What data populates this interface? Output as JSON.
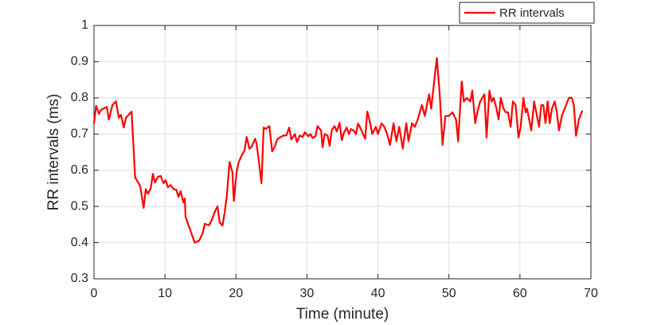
{
  "chart_data": {
    "type": "line",
    "xlabel": "Time (minute)",
    "ylabel": "RR intervals (ms)",
    "x": [
      0,
      0.3,
      0.7,
      1,
      1.8,
      2.1,
      2.6,
      3.1,
      3.5,
      3.8,
      4.2,
      4.5,
      5.3,
      5.8,
      6.5,
      7,
      7.3,
      7.6,
      8,
      8.3,
      8.6,
      9,
      9.4,
      9.8,
      10.1,
      10.4,
      10.8,
      11.2,
      11.6,
      11.9,
      12.2,
      12.6,
      12.8,
      12.9,
      13.5,
      14.2,
      14.8,
      15.3,
      15.6,
      16.2,
      16.6,
      17.1,
      17.4,
      17.7,
      18.1,
      18.4,
      18.7,
      19.1,
      19.5,
      19.7,
      20.1,
      20.4,
      20.9,
      21.2,
      21.5,
      21.9,
      22.2,
      22.7,
      22.9,
      23.2,
      23.6,
      23.9,
      24.2,
      24.7,
      25.1,
      25.5,
      25.8,
      26.3,
      26.7,
      27.1,
      27.5,
      27.8,
      28.3,
      28.6,
      29,
      29.4,
      29.7,
      30.2,
      30.5,
      30.8,
      31.2,
      31.5,
      32,
      32.2,
      32.5,
      32.9,
      33.2,
      33.5,
      33.9,
      34.2,
      34.6,
      34.9,
      35.2,
      35.6,
      35.9,
      36.2,
      36.6,
      36.9,
      37.2,
      37.6,
      37.9,
      38.2,
      38.5,
      38.8,
      39.2,
      39.7,
      40,
      40.5,
      40.9,
      41.3,
      41.7,
      42.2,
      42.6,
      43,
      43.5,
      44,
      44.3,
      44.8,
      45.2,
      45.6,
      46.2,
      46.6,
      47.2,
      47.5,
      48,
      48.3,
      48.7,
      49.1,
      49.5,
      50,
      50.5,
      51,
      51.3,
      51.8,
      52.1,
      52.5,
      53,
      53.3,
      53.7,
      54,
      54.4,
      55,
      55.3,
      55.7,
      56,
      56.3,
      56.7,
      57,
      57.3,
      57.7,
      58,
      58.3,
      58.7,
      59,
      59.4,
      59.8,
      60.1,
      60.5,
      60.8,
      61,
      61.6,
      62,
      62.3,
      62.7,
      63,
      63.3,
      63.6,
      63.9,
      64.2,
      64.5,
      64.9,
      65.2,
      65.5,
      65.9,
      66.3,
      66.9,
      67.3,
      67.6,
      67.9,
      68.3,
      68.8
    ],
    "series": [
      {
        "name": "RR intervals",
        "color": "#ff0000",
        "values": [
          0.729,
          0.778,
          0.756,
          0.767,
          0.775,
          0.74,
          0.78,
          0.79,
          0.745,
          0.753,
          0.718,
          0.745,
          0.762,
          0.58,
          0.557,
          0.496,
          0.548,
          0.535,
          0.55,
          0.59,
          0.566,
          0.582,
          0.584,
          0.564,
          0.573,
          0.553,
          0.559,
          0.548,
          0.546,
          0.526,
          0.542,
          0.511,
          0.522,
          0.471,
          0.438,
          0.4,
          0.405,
          0.425,
          0.452,
          0.448,
          0.463,
          0.489,
          0.5,
          0.456,
          0.447,
          0.482,
          0.526,
          0.623,
          0.595,
          0.515,
          0.597,
          0.623,
          0.645,
          0.654,
          0.692,
          0.659,
          0.665,
          0.687,
          0.674,
          0.63,
          0.564,
          0.718,
          0.714,
          0.722,
          0.652,
          0.667,
          0.685,
          0.692,
          0.696,
          0.696,
          0.718,
          0.685,
          0.7,
          0.678,
          0.696,
          0.692,
          0.705,
          0.694,
          0.7,
          0.689,
          0.694,
          0.722,
          0.709,
          0.663,
          0.7,
          0.696,
          0.667,
          0.711,
          0.722,
          0.707,
          0.731,
          0.683,
          0.703,
          0.718,
          0.7,
          0.714,
          0.709,
          0.7,
          0.729,
          0.714,
          0.7,
          0.687,
          0.762,
          0.74,
          0.7,
          0.72,
          0.7,
          0.73,
          0.72,
          0.7,
          0.67,
          0.73,
          0.68,
          0.72,
          0.66,
          0.73,
          0.68,
          0.73,
          0.72,
          0.74,
          0.78,
          0.75,
          0.81,
          0.77,
          0.86,
          0.91,
          0.81,
          0.67,
          0.75,
          0.75,
          0.76,
          0.74,
          0.68,
          0.845,
          0.79,
          0.8,
          0.79,
          0.82,
          0.73,
          0.76,
          0.79,
          0.81,
          0.69,
          0.82,
          0.79,
          0.8,
          0.77,
          0.74,
          0.8,
          0.77,
          0.76,
          0.76,
          0.72,
          0.79,
          0.78,
          0.69,
          0.72,
          0.8,
          0.76,
          0.77,
          0.71,
          0.79,
          0.76,
          0.72,
          0.78,
          0.78,
          0.73,
          0.79,
          0.73,
          0.77,
          0.79,
          0.76,
          0.71,
          0.75,
          0.77,
          0.8,
          0.8,
          0.78,
          0.695,
          0.74,
          0.765
        ]
      }
    ],
    "xlim": [
      0,
      70
    ],
    "xticks": [
      0,
      10,
      20,
      30,
      40,
      50,
      60,
      70
    ],
    "ylim": [
      0.3,
      1
    ],
    "yticks": [
      0.3,
      0.4,
      0.5,
      0.6,
      0.7,
      0.8,
      0.9,
      1
    ],
    "grid": true,
    "legend": "northeast"
  }
}
